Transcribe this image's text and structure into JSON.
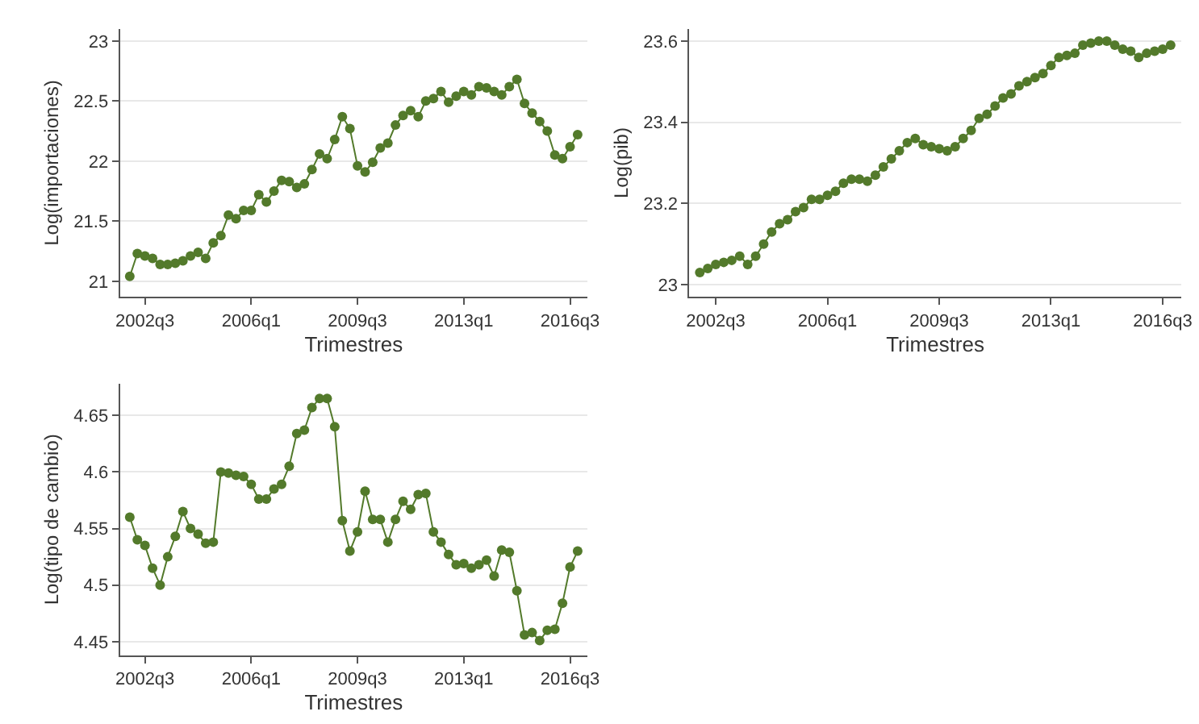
{
  "chart_data": [
    {
      "type": "line",
      "xlabel": "Trimestres",
      "ylabel": "Log(importaciones)",
      "marker": "circle",
      "grid": "y",
      "ylim": [
        20.87,
        23.1
      ],
      "yticks": [
        21,
        21.5,
        22,
        22.5,
        23
      ],
      "categories": [
        null,
        null,
        "2002q3",
        null,
        null,
        null,
        null,
        null,
        null,
        null,
        null,
        null,
        null,
        null,
        null,
        null,
        "2006q1",
        null,
        null,
        null,
        null,
        null,
        null,
        null,
        null,
        null,
        null,
        null,
        null,
        null,
        "2009q3",
        null,
        null,
        null,
        null,
        null,
        null,
        null,
        null,
        null,
        null,
        null,
        null,
        null,
        "2013q1",
        null,
        null,
        null,
        null,
        null,
        null,
        null,
        null,
        null,
        null,
        null,
        null,
        null,
        "2016q3",
        null
      ],
      "series": [
        {
          "color": "#537a2b",
          "values": [
            21.04,
            21.23,
            21.21,
            21.19,
            21.14,
            21.14,
            21.15,
            21.17,
            21.21,
            21.24,
            21.19,
            21.32,
            21.38,
            21.55,
            21.52,
            21.59,
            21.59,
            21.72,
            21.66,
            21.75,
            21.84,
            21.83,
            21.78,
            21.81,
            21.93,
            22.06,
            22.02,
            22.18,
            22.37,
            22.27,
            21.96,
            21.91,
            21.99,
            22.11,
            22.15,
            22.3,
            22.38,
            22.42,
            22.37,
            22.5,
            22.52,
            22.58,
            22.49,
            22.54,
            22.58,
            22.55,
            22.62,
            22.61,
            22.58,
            22.55,
            22.62,
            22.68,
            22.48,
            22.4,
            22.33,
            22.25,
            22.05,
            22.02,
            22.12,
            22.22
          ]
        }
      ]
    },
    {
      "type": "line",
      "xlabel": "Trimestres",
      "ylabel": "Log(pib)",
      "marker": "circle",
      "grid": "y",
      "ylim": [
        22.97,
        23.63
      ],
      "yticks": [
        23,
        23.2,
        23.4,
        23.6
      ],
      "categories": [
        null,
        null,
        "2002q3",
        null,
        null,
        null,
        null,
        null,
        null,
        null,
        null,
        null,
        null,
        null,
        null,
        null,
        "2006q1",
        null,
        null,
        null,
        null,
        null,
        null,
        null,
        null,
        null,
        null,
        null,
        null,
        null,
        "2009q3",
        null,
        null,
        null,
        null,
        null,
        null,
        null,
        null,
        null,
        null,
        null,
        null,
        null,
        "2013q1",
        null,
        null,
        null,
        null,
        null,
        null,
        null,
        null,
        null,
        null,
        null,
        null,
        null,
        "2016q3",
        null
      ],
      "series": [
        {
          "color": "#537a2b",
          "values": [
            23.03,
            23.04,
            23.05,
            23.055,
            23.06,
            23.07,
            23.05,
            23.07,
            23.1,
            23.13,
            23.15,
            23.16,
            23.18,
            23.19,
            23.21,
            23.21,
            23.22,
            23.23,
            23.25,
            23.26,
            23.26,
            23.255,
            23.27,
            23.29,
            23.31,
            23.33,
            23.35,
            23.36,
            23.345,
            23.34,
            23.335,
            23.33,
            23.34,
            23.36,
            23.38,
            23.41,
            23.42,
            23.44,
            23.46,
            23.47,
            23.49,
            23.5,
            23.51,
            23.52,
            23.54,
            23.56,
            23.565,
            23.57,
            23.59,
            23.595,
            23.6,
            23.6,
            23.59,
            23.58,
            23.575,
            23.56,
            23.57,
            23.575,
            23.58,
            23.59
          ]
        }
      ]
    },
    {
      "type": "line",
      "xlabel": "Trimestres",
      "ylabel": "Log(tipo de cambio)",
      "marker": "circle",
      "grid": "y",
      "ylim": [
        4.438,
        4.678
      ],
      "yticks": [
        4.45,
        4.5,
        4.55,
        4.6,
        4.65
      ],
      "categories": [
        null,
        null,
        "2002q3",
        null,
        null,
        null,
        null,
        null,
        null,
        null,
        null,
        null,
        null,
        null,
        null,
        null,
        "2006q1",
        null,
        null,
        null,
        null,
        null,
        null,
        null,
        null,
        null,
        null,
        null,
        null,
        null,
        "2009q3",
        null,
        null,
        null,
        null,
        null,
        null,
        null,
        null,
        null,
        null,
        null,
        null,
        null,
        "2013q1",
        null,
        null,
        null,
        null,
        null,
        null,
        null,
        null,
        null,
        null,
        null,
        null,
        null,
        "2016q3",
        null
      ],
      "series": [
        {
          "color": "#537a2b",
          "values": [
            4.56,
            4.54,
            4.535,
            4.515,
            4.5,
            4.525,
            4.543,
            4.565,
            4.55,
            4.545,
            4.537,
            4.538,
            4.6,
            4.599,
            4.597,
            4.596,
            4.589,
            4.576,
            4.576,
            4.585,
            4.589,
            4.605,
            4.634,
            4.637,
            4.657,
            4.665,
            4.665,
            4.64,
            4.557,
            4.53,
            4.547,
            4.583,
            4.558,
            4.558,
            4.538,
            4.558,
            4.574,
            4.567,
            4.58,
            4.581,
            4.547,
            4.538,
            4.527,
            4.518,
            4.519,
            4.515,
            4.518,
            4.522,
            4.508,
            4.531,
            4.529,
            4.495,
            4.456,
            4.458,
            4.451,
            4.46,
            4.461,
            4.484,
            4.516,
            4.53
          ]
        }
      ]
    }
  ]
}
